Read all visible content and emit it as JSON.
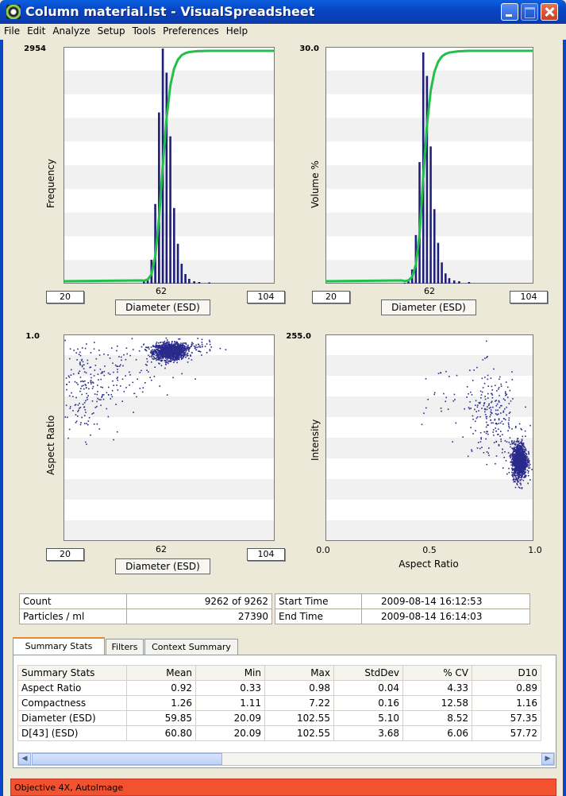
{
  "window": {
    "title": "Column material.lst - VisualSpreadsheet"
  },
  "menu": [
    "File",
    "Edit",
    "Analyze",
    "Setup",
    "Tools",
    "Preferences",
    "Help"
  ],
  "colors": {
    "bars": "#1f1f7a",
    "curve": "#22c04a",
    "points": "#2a2a8c",
    "status": "#f2522e"
  },
  "chart_data": [
    {
      "type": "bar",
      "ylabel": "Frequency",
      "xlabel": "Diameter (ESD)",
      "ymax_label": "2954",
      "xmin_label": "20",
      "xmid_label": "62",
      "xmax_label": "104",
      "ylim": [
        0,
        2954
      ],
      "xlim": [
        20,
        104
      ],
      "x": [
        52,
        53.5,
        55,
        56.5,
        58,
        59.5,
        61,
        62.5,
        64,
        65.5,
        67,
        68.5,
        70,
        72,
        74,
        78
      ],
      "values": [
        30,
        60,
        300,
        1000,
        2150,
        2954,
        2650,
        1850,
        950,
        500,
        250,
        120,
        60,
        30,
        20,
        15
      ],
      "cumulative": true
    },
    {
      "type": "bar",
      "ylabel": "Volume %",
      "xlabel": "Diameter (ESD)",
      "ymax_label": "30.0",
      "xmin_label": "20",
      "xmid_label": "62",
      "xmax_label": "104",
      "ylim": [
        0,
        30
      ],
      "xlim": [
        20,
        104
      ],
      "x": [
        52,
        53.5,
        55,
        56.5,
        58,
        59.5,
        61,
        62.5,
        64,
        65.5,
        67,
        68.5,
        70,
        72,
        74,
        78
      ],
      "values": [
        0.1,
        0.3,
        1.8,
        6.2,
        15.5,
        29.5,
        26.5,
        17.5,
        9.5,
        5.2,
        2.7,
        1.3,
        0.7,
        0.4,
        0.3,
        0.2
      ],
      "cumulative": true
    },
    {
      "type": "scatter",
      "ylabel": "Aspect Ratio",
      "xlabel": "Diameter (ESD)",
      "ymax_label": "1.0",
      "xmin_label": "20",
      "xmid_label": "62",
      "xmax_label": "104",
      "ylim": [
        0,
        1
      ],
      "xlim": [
        20,
        104
      ],
      "clusters": [
        {
          "cx": 62,
          "cy": 0.92,
          "sx": 3.2,
          "sy": 0.02,
          "n": 1200
        },
        {
          "cx": 68,
          "cy": 0.94,
          "sx": 6,
          "sy": 0.015,
          "n": 120
        },
        {
          "cx": 28,
          "cy": 0.75,
          "sx": 7,
          "sy": 0.12,
          "n": 220
        },
        {
          "cx": 46,
          "cy": 0.82,
          "sx": 10,
          "sy": 0.08,
          "n": 70
        }
      ]
    },
    {
      "type": "scatter",
      "ylabel": "Intensity",
      "xlabel": "Aspect Ratio",
      "ymax_label": "255.0",
      "xmin_label": "0.0",
      "xmid_label": "0.5",
      "xmax_label": "1.0",
      "ylim": [
        0,
        255
      ],
      "xlim": [
        0,
        1
      ],
      "clusters": [
        {
          "cx": 0.93,
          "cy": 100,
          "sx": 0.018,
          "sy": 11,
          "n": 1200
        },
        {
          "cx": 0.8,
          "cy": 155,
          "sx": 0.07,
          "sy": 28,
          "n": 230
        },
        {
          "cx": 0.55,
          "cy": 180,
          "sx": 0.06,
          "sy": 15,
          "n": 25
        }
      ]
    }
  ],
  "info": {
    "count_label": "Count",
    "count_value": "9262  of  9262",
    "particles_label": "Particles / ml",
    "particles_value": "27390",
    "start_label": "Start Time",
    "start_value": "2009-08-14  16:12:53",
    "end_label": "End Time",
    "end_value": "2009-08-14  16:14:03"
  },
  "tabs": [
    "Summary Stats",
    "Filters",
    "Context Summary"
  ],
  "stats": {
    "headers": [
      "Summary Stats",
      "Mean",
      "Min",
      "Max",
      "StdDev",
      "% CV",
      "D10"
    ],
    "rows": [
      [
        "Aspect Ratio",
        "0.92",
        "0.33",
        "0.98",
        "0.04",
        "4.33",
        "0.89"
      ],
      [
        "Compactness",
        "1.26",
        "1.11",
        "7.22",
        "0.16",
        "12.58",
        "1.16"
      ],
      [
        "Diameter (ESD)",
        "59.85",
        "20.09",
        "102.55",
        "5.10",
        "8.52",
        "57.35"
      ],
      [
        "D[43] (ESD)",
        "60.80",
        "20.09",
        "102.55",
        "3.68",
        "6.06",
        "57.72"
      ]
    ]
  },
  "status": "Objective 4X, AutoImage"
}
